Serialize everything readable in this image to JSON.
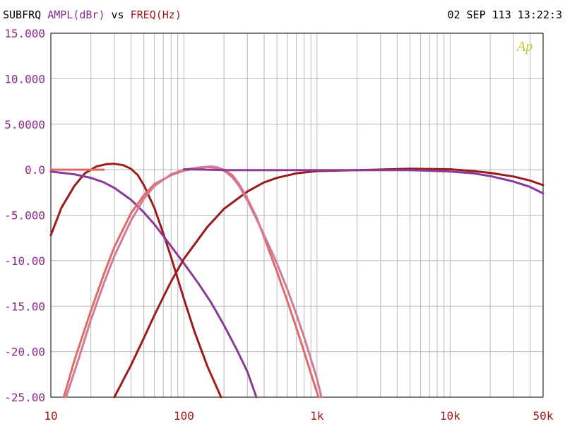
{
  "header": {
    "title_parts": [
      {
        "text": "SUBFRQ",
        "color": "#000000"
      },
      {
        "text": "AMPL(dBr)",
        "color": "#8a2b8a"
      },
      {
        "text": "vs",
        "color": "#000000"
      },
      {
        "text": "FREQ(Hz)",
        "color": "#a01818"
      }
    ],
    "timestamp": "02 SEP 113 13:22:3"
  },
  "logo": {
    "text": "Ap",
    "color": "#c8c832"
  },
  "colors": {
    "y_tick_labels": "#8a2b8a",
    "x_tick_labels": "#a01818",
    "grid": "#b8b8b8"
  },
  "chart_data": {
    "type": "line",
    "x_scale": "log",
    "xlim": [
      10,
      50000
    ],
    "ylim": [
      -25,
      15
    ],
    "grid": true,
    "y_tick_labels": [
      {
        "value": 15,
        "label": "15.000"
      },
      {
        "value": 10,
        "label": "10.000"
      },
      {
        "value": 5,
        "label": "5.0000"
      },
      {
        "value": 0,
        "label": "0.0"
      },
      {
        "value": -5,
        "label": "-5.000"
      },
      {
        "value": -10,
        "label": "-10.00"
      },
      {
        "value": -15,
        "label": "-15.00"
      },
      {
        "value": -20,
        "label": "-20.00"
      },
      {
        "value": -25,
        "label": "-25.00"
      }
    ],
    "x_tick_labels": [
      {
        "value": 10,
        "label": "10"
      },
      {
        "value": 100,
        "label": "100"
      },
      {
        "value": 1000,
        "label": "1k"
      },
      {
        "value": 10000,
        "label": "10k"
      },
      {
        "value": 50000,
        "label": "50k"
      }
    ],
    "series": [
      {
        "color": "#9b1c1c",
        "points": [
          [
            10,
            -7.2
          ],
          [
            12,
            -4.2
          ],
          [
            15,
            -1.8
          ],
          [
            18,
            -0.4
          ],
          [
            22,
            0.35
          ],
          [
            26,
            0.6
          ],
          [
            30,
            0.65
          ],
          [
            35,
            0.5
          ],
          [
            40,
            0.1
          ],
          [
            45,
            -0.6
          ],
          [
            50,
            -1.7
          ],
          [
            60,
            -4.2
          ],
          [
            70,
            -7.0
          ],
          [
            80,
            -9.6
          ],
          [
            100,
            -14.2
          ],
          [
            120,
            -17.8
          ],
          [
            150,
            -21.6
          ],
          [
            190,
            -25
          ]
        ]
      },
      {
        "color": "#8a3a9a",
        "points": [
          [
            10,
            -0.2
          ],
          [
            15,
            -0.5
          ],
          [
            20,
            -0.9
          ],
          [
            25,
            -1.4
          ],
          [
            30,
            -2.0
          ],
          [
            40,
            -3.3
          ],
          [
            50,
            -4.7
          ],
          [
            60,
            -6.0
          ],
          [
            80,
            -8.4
          ],
          [
            100,
            -10.3
          ],
          [
            130,
            -12.6
          ],
          [
            160,
            -14.6
          ],
          [
            200,
            -17.1
          ],
          [
            250,
            -19.8
          ],
          [
            300,
            -22.2
          ],
          [
            350,
            -25
          ]
        ]
      },
      {
        "color": "#9b1c1c",
        "points": [
          [
            30,
            -25
          ],
          [
            40,
            -21.5
          ],
          [
            50,
            -18.5
          ],
          [
            60,
            -16.0
          ],
          [
            70,
            -14.0
          ],
          [
            80,
            -12.3
          ],
          [
            100,
            -9.8
          ],
          [
            150,
            -6.3
          ],
          [
            200,
            -4.3
          ],
          [
            300,
            -2.4
          ],
          [
            400,
            -1.4
          ],
          [
            500,
            -0.9
          ],
          [
            700,
            -0.4
          ],
          [
            1000,
            -0.15
          ],
          [
            2000,
            -0.05
          ],
          [
            5000,
            0.1
          ],
          [
            10000,
            0.05
          ],
          [
            15000,
            -0.15
          ],
          [
            20000,
            -0.35
          ],
          [
            30000,
            -0.75
          ],
          [
            40000,
            -1.2
          ],
          [
            50000,
            -1.7
          ]
        ]
      },
      {
        "color": "#8a3a9a",
        "points": [
          [
            1000,
            -0.05
          ],
          [
            2000,
            -0.05
          ],
          [
            5000,
            -0.05
          ],
          [
            10000,
            -0.2
          ],
          [
            15000,
            -0.4
          ],
          [
            20000,
            -0.7
          ],
          [
            30000,
            -1.3
          ],
          [
            40000,
            -1.9
          ],
          [
            50000,
            -2.6
          ]
        ]
      },
      {
        "color": "#e06a6a",
        "points": [
          [
            12.5,
            -25
          ],
          [
            15,
            -21.0
          ],
          [
            20,
            -15.5
          ],
          [
            25,
            -11.5
          ],
          [
            30,
            -8.5
          ],
          [
            40,
            -4.8
          ],
          [
            50,
            -2.8
          ],
          [
            60,
            -1.6
          ],
          [
            80,
            -0.6
          ],
          [
            100,
            -0.1
          ],
          [
            130,
            0.2
          ],
          [
            150,
            0.3
          ],
          [
            180,
            0.2
          ],
          [
            200,
            0.0
          ],
          [
            230,
            -0.6
          ],
          [
            260,
            -1.6
          ],
          [
            300,
            -3.2
          ],
          [
            350,
            -5.2
          ],
          [
            400,
            -7.4
          ],
          [
            500,
            -11.2
          ],
          [
            600,
            -14.5
          ],
          [
            700,
            -17.4
          ],
          [
            800,
            -20.0
          ],
          [
            900,
            -22.4
          ],
          [
            1000,
            -24.5
          ],
          [
            1030,
            -25
          ]
        ]
      },
      {
        "color": "#d07b9a",
        "points": [
          [
            13,
            -25
          ],
          [
            16,
            -21.0
          ],
          [
            20,
            -16.5
          ],
          [
            25,
            -12.5
          ],
          [
            30,
            -9.5
          ],
          [
            40,
            -5.6
          ],
          [
            50,
            -3.2
          ],
          [
            60,
            -1.8
          ],
          [
            80,
            -0.5
          ],
          [
            100,
            0.0
          ],
          [
            130,
            0.25
          ],
          [
            160,
            0.35
          ],
          [
            180,
            0.25
          ],
          [
            200,
            -0.1
          ],
          [
            230,
            -0.8
          ],
          [
            260,
            -1.8
          ],
          [
            300,
            -3.4
          ],
          [
            350,
            -5.4
          ],
          [
            400,
            -7.2
          ],
          [
            450,
            -8.8
          ],
          [
            500,
            -10.3
          ],
          [
            600,
            -13.2
          ],
          [
            700,
            -15.9
          ],
          [
            800,
            -18.4
          ],
          [
            900,
            -20.8
          ],
          [
            1000,
            -23.0
          ],
          [
            1080,
            -25
          ]
        ]
      },
      {
        "color": "#8a3a9a",
        "points": [
          [
            100,
            0.05
          ],
          [
            150,
            0.0
          ],
          [
            200,
            -0.05
          ],
          [
            300,
            -0.05
          ],
          [
            500,
            -0.05
          ],
          [
            1000,
            -0.05
          ]
        ]
      },
      {
        "color": "#e06a6a",
        "points": [
          [
            10,
            0.0
          ],
          [
            12,
            0.0
          ],
          [
            15,
            0.0
          ],
          [
            20,
            0.0
          ],
          [
            25,
            0.0
          ]
        ]
      }
    ]
  }
}
